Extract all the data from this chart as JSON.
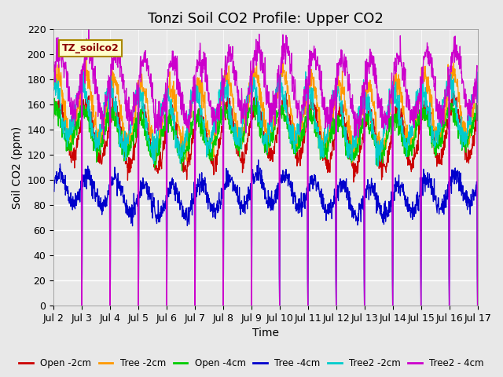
{
  "title": "Tonzi Soil CO2 Profile: Upper CO2",
  "xlabel": "Time",
  "ylabel": "Soil CO2 (ppm)",
  "legend_title": "TZ_soilco2",
  "ylim": [
    0,
    220
  ],
  "yticks": [
    0,
    20,
    40,
    60,
    80,
    100,
    120,
    140,
    160,
    180,
    200,
    220
  ],
  "x_tick_positions": [
    1,
    2,
    3,
    4,
    5,
    6,
    7,
    8,
    9,
    10,
    11,
    12,
    13,
    14,
    15,
    16
  ],
  "x_labels": [
    "Jul 2",
    "Jul 3",
    "Jul 4",
    "Jul 5",
    "Jul 6",
    "Jul 7",
    "Jul 8",
    "Jul 9",
    "Jul 10",
    "Jul 11",
    "Jul 12",
    "Jul 13",
    "Jul 14",
    "Jul 15",
    "Jul 16",
    "Jul 17"
  ],
  "series": [
    {
      "label": "Open -2cm",
      "color": "#cc0000"
    },
    {
      "label": "Tree -2cm",
      "color": "#ff9900"
    },
    {
      "label": "Open -4cm",
      "color": "#00cc00"
    },
    {
      "label": "Tree -4cm",
      "color": "#0000cc"
    },
    {
      "label": "Tree2 -2cm",
      "color": "#00cccc"
    },
    {
      "label": "Tree2 - 4cm",
      "color": "#cc00cc"
    }
  ],
  "background_color": "#e8e8e8",
  "plot_bg_color": "#e8e8e8",
  "grid_color": "#ffffff",
  "title_fontsize": 13,
  "axis_fontsize": 10,
  "legend_fontsize": 9,
  "n_points": 1500,
  "days": 16
}
